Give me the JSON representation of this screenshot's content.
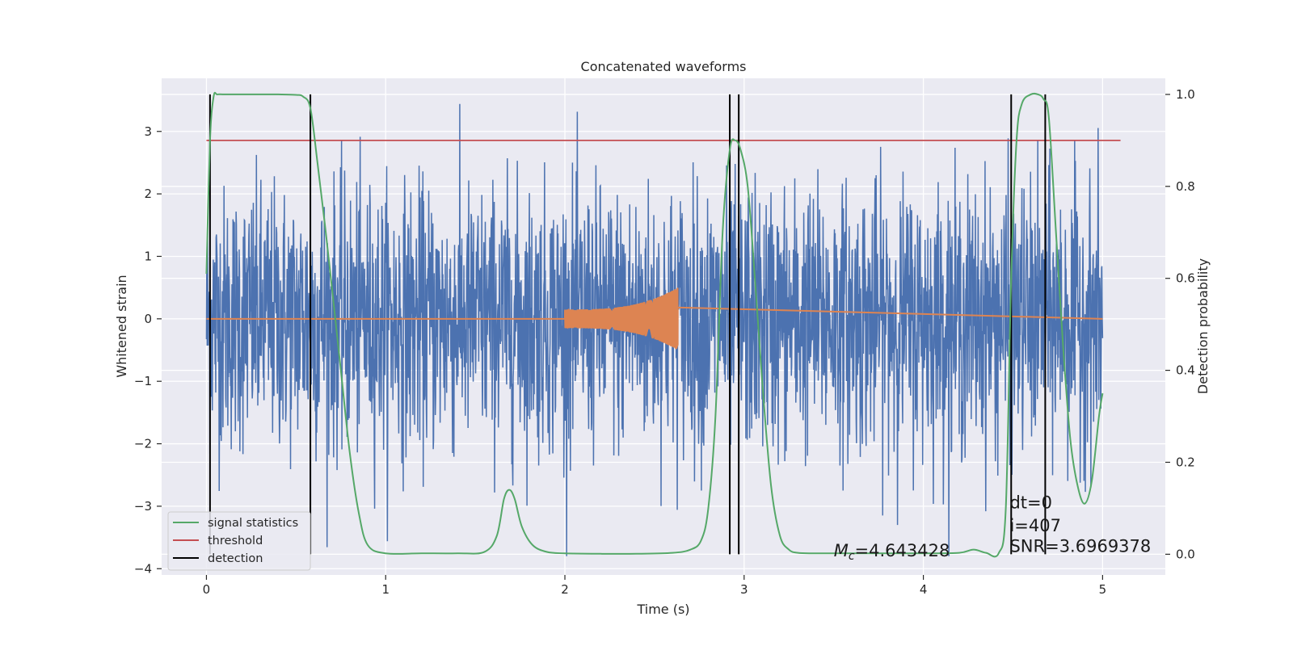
{
  "chart_data": {
    "type": "line",
    "title": "Concatenated waveforms",
    "xlabel": "Time (s)",
    "ylabel": "Whitened strain",
    "y2label": "Detection probability",
    "xlim": [
      -0.25,
      5.35
    ],
    "ylim": [
      -4.1,
      3.85
    ],
    "y2lim": [
      -0.045,
      1.035
    ],
    "x_ticks": [
      0,
      1,
      2,
      3,
      4,
      5
    ],
    "y_ticks": [
      -4,
      -3,
      -2,
      -1,
      0,
      1,
      2,
      3
    ],
    "y2_ticks": [
      0.0,
      0.2,
      0.4,
      0.6,
      0.8,
      1.0
    ],
    "grid": true,
    "legend_position": "lower-left",
    "legend": [
      {
        "label": "signal statistics",
        "color": "#55a868"
      },
      {
        "label": "threshold",
        "color": "#c44e52"
      },
      {
        "label": "detection",
        "color": "#000000"
      }
    ],
    "series": [
      {
        "name": "signal statistics",
        "axis": "right",
        "color": "#55a868",
        "x": [
          0.0,
          0.02,
          0.04,
          0.06,
          0.1,
          0.2,
          0.3,
          0.4,
          0.5,
          0.54,
          0.58,
          0.62,
          0.66,
          0.7,
          0.75,
          0.8,
          0.85,
          0.9,
          1.0,
          1.2,
          1.4,
          1.55,
          1.62,
          1.66,
          1.69,
          1.72,
          1.76,
          1.82,
          1.9,
          2.0,
          2.2,
          2.4,
          2.6,
          2.7,
          2.76,
          2.8,
          2.84,
          2.88,
          2.92,
          2.95,
          2.98,
          3.02,
          3.06,
          3.1,
          3.15,
          3.2,
          3.25,
          3.3,
          3.4,
          3.6,
          3.8,
          4.0,
          4.2,
          4.28,
          4.35,
          4.42,
          4.46,
          4.49,
          4.52,
          4.55,
          4.6,
          4.64,
          4.67,
          4.7,
          4.74,
          4.78,
          4.82,
          4.86,
          4.9,
          4.94,
          4.98,
          5.0
        ],
        "y": [
          0.61,
          0.9,
          0.995,
          1.0,
          1.0,
          1.0,
          1.0,
          1.0,
          0.999,
          0.995,
          0.97,
          0.85,
          0.72,
          0.58,
          0.4,
          0.22,
          0.09,
          0.02,
          0.002,
          0.002,
          0.002,
          0.005,
          0.04,
          0.12,
          0.14,
          0.12,
          0.06,
          0.02,
          0.005,
          0.002,
          0.001,
          0.001,
          0.003,
          0.01,
          0.03,
          0.1,
          0.3,
          0.7,
          0.88,
          0.9,
          0.88,
          0.8,
          0.6,
          0.38,
          0.15,
          0.04,
          0.01,
          0.003,
          0.002,
          0.002,
          0.002,
          0.002,
          0.003,
          0.01,
          0.003,
          0.002,
          0.1,
          0.6,
          0.9,
          0.98,
          1.0,
          1.0,
          0.99,
          0.95,
          0.7,
          0.45,
          0.25,
          0.15,
          0.11,
          0.16,
          0.3,
          0.35
        ]
      },
      {
        "name": "threshold",
        "axis": "right",
        "color": "#c44e52",
        "x": [
          0.0,
          5.1
        ],
        "y": [
          0.9,
          0.9
        ]
      },
      {
        "name": "whitened strain",
        "axis": "left",
        "color": "#4c72b0",
        "x_range": [
          0.0,
          5.0
        ],
        "amplitude_envelope": [
          -3.8,
          3.5
        ]
      },
      {
        "name": "injected waveform",
        "axis": "left",
        "color": "#dd8452",
        "x_range": [
          0.0,
          5.0
        ],
        "chirp_range": [
          2.0,
          2.63
        ],
        "chirp_amplitude": [
          0.15,
          0.5
        ]
      }
    ],
    "detections": [
      0.02,
      0.58,
      2.92,
      2.97,
      4.49,
      4.68
    ],
    "annotations": [
      {
        "text_base": "M",
        "text_sub": "c",
        "text_rest": "=4.643428",
        "x": 3.5,
        "y2": -0.005
      },
      {
        "text": "dt=0",
        "x": 4.5,
        "y2": 0.1
      },
      {
        "text": "i=407",
        "x": 4.5,
        "y2": 0.05
      },
      {
        "text": "SNR=3.6969378",
        "x": 4.5,
        "y2": 0.005
      }
    ]
  }
}
